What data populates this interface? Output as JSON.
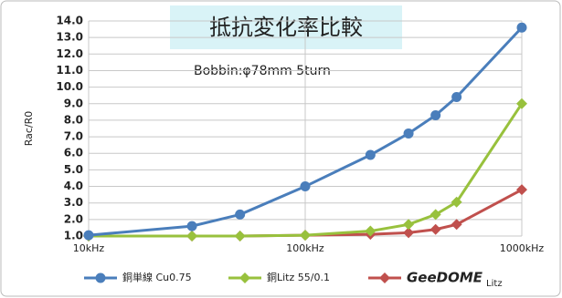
{
  "chart_data": {
    "type": "line",
    "title": "抵抗変化率比較",
    "subtitle": "Bobbin:φ78mm 5turn",
    "y_label": "Rac/R0",
    "x": [
      10,
      30,
      50,
      100,
      200,
      300,
      400,
      500,
      1000
    ],
    "xlim": [
      10,
      1000
    ],
    "xscale": "log",
    "xticks": [
      {
        "value": 10,
        "label": "10kHz"
      },
      {
        "value": 100,
        "label": "100kHz"
      },
      {
        "value": 1000,
        "label": "1000kHz"
      }
    ],
    "ylim": [
      1,
      14
    ],
    "yticks": [
      {
        "value": 1,
        "label": "1.0"
      },
      {
        "value": 2,
        "label": "2.0"
      },
      {
        "value": 3,
        "label": "3.0"
      },
      {
        "value": 4,
        "label": "4.0"
      },
      {
        "value": 5,
        "label": "5.0"
      },
      {
        "value": 6,
        "label": "6.0"
      },
      {
        "value": 7,
        "label": "7.0"
      },
      {
        "value": 8,
        "label": "8.0"
      },
      {
        "value": 9,
        "label": "9.0"
      },
      {
        "value": 10,
        "label": "10.0"
      },
      {
        "value": 11,
        "label": "11.0"
      },
      {
        "value": 12,
        "label": "12.0"
      },
      {
        "value": 13,
        "label": "13.0"
      },
      {
        "value": 14,
        "label": "14.0"
      }
    ],
    "grid": true,
    "legend": "bottom",
    "series": [
      {
        "name": "銅単線 Cu0.75",
        "color": "#4a7ebb",
        "marker": "circle",
        "values": [
          1.05,
          1.6,
          2.3,
          4.0,
          5.9,
          7.2,
          8.3,
          9.4,
          13.6
        ]
      },
      {
        "name": "銅Litz 55/0.1",
        "color": "#98c13d",
        "marker": "diamond",
        "values": [
          1.0,
          1.0,
          1.0,
          1.05,
          1.3,
          1.7,
          2.3,
          3.05,
          9.0
        ]
      },
      {
        "name": "GeeDOME",
        "name_subscript": "Litz",
        "color": "#c0504d",
        "marker": "diamond",
        "values": [
          1.0,
          1.0,
          1.0,
          1.05,
          1.1,
          1.2,
          1.4,
          1.7,
          3.8
        ]
      }
    ]
  }
}
